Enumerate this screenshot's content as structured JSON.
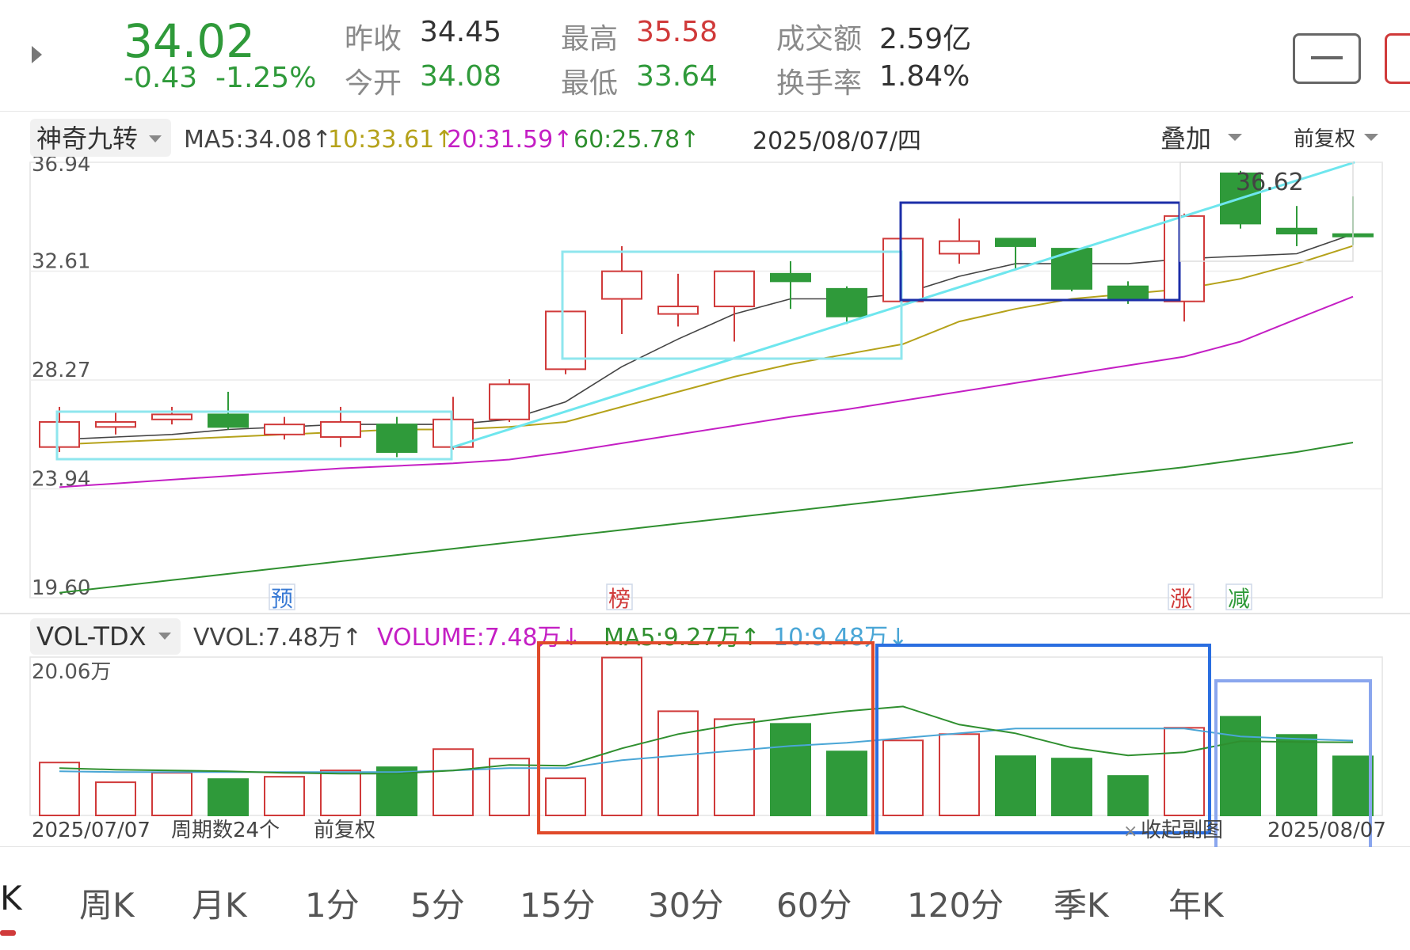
{
  "quote": {
    "price": "34.02",
    "change": "-0.43",
    "change_pct": "-1.25%",
    "fields": [
      {
        "label": "昨收",
        "value": "34.45",
        "color": "dark"
      },
      {
        "label": "今开",
        "value": "34.08",
        "color": "green"
      },
      {
        "label": "最高",
        "value": "35.58",
        "color": "red"
      },
      {
        "label": "最低",
        "value": "33.64",
        "color": "green"
      },
      {
        "label": "成交额",
        "value": "2.59亿",
        "color": "dark"
      },
      {
        "label": "换手率",
        "value": "1.84%",
        "color": "dark"
      }
    ]
  },
  "indicator_bar": {
    "selector": "神奇九转",
    "ma": [
      {
        "text": "MA5:34.08↑",
        "color": "#444444"
      },
      {
        "text": "10:33.61↑",
        "color": "#b5a21a"
      },
      {
        "text": "20:31.59↑",
        "color": "#c41fc4"
      },
      {
        "text": "60:25.78↑",
        "color": "#2f8f2f"
      }
    ],
    "date": "2025/08/07/四",
    "overlay": "叠加",
    "adjust": "前复权"
  },
  "price_axis": [
    "36.94",
    "32.61",
    "28.27",
    "23.94",
    "19.60"
  ],
  "high_label": "36.62",
  "markers": [
    {
      "text": "预",
      "color": "#3a7bd5"
    },
    {
      "text": "榜",
      "color": "#d03a3a"
    },
    {
      "text": "涨",
      "color": "#d03a3a"
    },
    {
      "text": "减",
      "color": "#2f9a3a"
    }
  ],
  "volume_bar": {
    "selector": "VOL-TDX",
    "items": [
      {
        "text": "VVOL:7.48万↑",
        "color": "#444444"
      },
      {
        "text": "VOLUME:7.48万↓",
        "color": "#c41fc4"
      },
      {
        "text": "MA5:9.27万↑",
        "color": "#2f8f2f"
      },
      {
        "text": "10:9.48万↓",
        "color": "#4aa6d6"
      }
    ],
    "axis_top": "20.06万"
  },
  "footer": {
    "start_date": "2025/07/07",
    "period_count": "周期数24个",
    "adjust": "前复权",
    "collapse": "收起副图",
    "end_date": "2025/08/07"
  },
  "tabs": [
    "K",
    "周K",
    "月K",
    "1分",
    "5分",
    "15分",
    "30分",
    "60分",
    "120分",
    "季K",
    "年K"
  ],
  "colors": {
    "up": "#d03a3a",
    "down": "#2f9a3a",
    "ma5": "#444444",
    "ma10": "#b5a21a",
    "ma20": "#c41fc4",
    "ma60": "#2f8f2f",
    "vma10": "#4aa6d6"
  },
  "chart_data": {
    "type": "candlestick",
    "price_range": [
      19.6,
      36.94
    ],
    "volume_range": [
      0,
      20.06
    ],
    "candles": [
      {
        "o": 25.6,
        "c": 26.6,
        "h": 27.2,
        "l": 25.4,
        "v": 6.7
      },
      {
        "o": 26.4,
        "c": 26.6,
        "h": 27.0,
        "l": 26.1,
        "v": 4.2
      },
      {
        "o": 26.7,
        "c": 26.9,
        "h": 27.2,
        "l": 26.5,
        "v": 5.4
      },
      {
        "o": 26.9,
        "c": 26.4,
        "h": 27.8,
        "l": 26.3,
        "v": 4.6
      },
      {
        "o": 26.1,
        "c": 26.5,
        "h": 26.8,
        "l": 25.9,
        "v": 4.9
      },
      {
        "o": 26.0,
        "c": 26.6,
        "h": 27.2,
        "l": 25.6,
        "v": 5.7
      },
      {
        "o": 26.5,
        "c": 25.4,
        "h": 26.8,
        "l": 25.2,
        "v": 6.1
      },
      {
        "o": 25.6,
        "c": 26.7,
        "h": 27.6,
        "l": 25.5,
        "v": 8.4
      },
      {
        "o": 26.7,
        "c": 28.1,
        "h": 28.3,
        "l": 26.6,
        "v": 7.2
      },
      {
        "o": 28.7,
        "c": 31.0,
        "h": 31.0,
        "l": 28.5,
        "v": 4.7
      },
      {
        "o": 31.5,
        "c": 32.6,
        "h": 33.6,
        "l": 30.1,
        "v": 20.0
      },
      {
        "o": 30.9,
        "c": 31.2,
        "h": 32.5,
        "l": 30.4,
        "v": 13.2
      },
      {
        "o": 31.2,
        "c": 32.6,
        "h": 32.6,
        "l": 29.8,
        "v": 12.2
      },
      {
        "o": 32.5,
        "c": 32.2,
        "h": 33.0,
        "l": 31.1,
        "v": 11.6
      },
      {
        "o": 31.9,
        "c": 30.8,
        "h": 32.0,
        "l": 30.5,
        "v": 8.1
      },
      {
        "o": 31.4,
        "c": 33.9,
        "h": 33.9,
        "l": 31.4,
        "v": 9.5
      },
      {
        "o": 33.3,
        "c": 33.8,
        "h": 34.7,
        "l": 32.9,
        "v": 10.3
      },
      {
        "o": 33.9,
        "c": 33.6,
        "h": 33.9,
        "l": 32.7,
        "v": 7.5
      },
      {
        "o": 33.5,
        "c": 31.9,
        "h": 33.5,
        "l": 31.8,
        "v": 7.2
      },
      {
        "o": 32.0,
        "c": 31.5,
        "h": 32.2,
        "l": 31.3,
        "v": 5.0
      },
      {
        "o": 31.4,
        "c": 34.8,
        "h": 34.9,
        "l": 30.6,
        "v": 11.1
      },
      {
        "o": 36.5,
        "c": 34.5,
        "h": 36.6,
        "l": 34.3,
        "v": 12.5
      },
      {
        "o": 34.3,
        "c": 34.1,
        "h": 35.2,
        "l": 33.6,
        "v": 10.2
      },
      {
        "o": 34.08,
        "c": 34.02,
        "h": 35.58,
        "l": 33.64,
        "v": 7.48
      }
    ],
    "ma5": [
      25.9,
      26.0,
      26.1,
      26.3,
      26.4,
      26.5,
      26.5,
      26.5,
      26.7,
      27.4,
      28.8,
      29.9,
      30.9,
      31.5,
      31.5,
      31.7,
      32.4,
      32.9,
      32.9,
      32.9,
      33.1,
      33.2,
      33.3,
      34.08
    ],
    "ma10": [
      25.7,
      25.8,
      25.9,
      26.0,
      26.1,
      26.2,
      26.3,
      26.3,
      26.4,
      26.6,
      27.2,
      27.8,
      28.4,
      28.9,
      29.3,
      29.7,
      30.6,
      31.1,
      31.5,
      31.7,
      31.9,
      32.3,
      32.9,
      33.61
    ],
    "ma20": [
      24.0,
      24.15,
      24.3,
      24.45,
      24.6,
      24.75,
      24.85,
      24.95,
      25.1,
      25.4,
      25.75,
      26.1,
      26.45,
      26.8,
      27.1,
      27.45,
      27.8,
      28.15,
      28.5,
      28.85,
      29.2,
      29.8,
      30.7,
      31.59
    ],
    "ma60": [
      19.8,
      20.05,
      20.3,
      20.55,
      20.8,
      21.05,
      21.3,
      21.55,
      21.8,
      22.05,
      22.3,
      22.55,
      22.8,
      23.05,
      23.3,
      23.55,
      23.8,
      24.05,
      24.3,
      24.55,
      24.8,
      25.1,
      25.4,
      25.78
    ],
    "vol_ma5": [
      6.0,
      5.8,
      5.7,
      5.6,
      5.4,
      5.3,
      5.3,
      5.7,
      6.4,
      6.3,
      8.5,
      10.3,
      11.5,
      12.4,
      13.2,
      13.8,
      11.5,
      10.4,
      8.6,
      7.6,
      8.0,
      9.4,
      9.3,
      9.27
    ],
    "vol_ma10": [
      5.6,
      5.5,
      5.5,
      5.5,
      5.5,
      5.5,
      5.5,
      5.7,
      6.0,
      6.0,
      7.0,
      7.6,
      8.2,
      8.8,
      9.2,
      9.8,
      10.4,
      11.0,
      11.0,
      11.0,
      11.0,
      10.0,
      9.7,
      9.48
    ]
  }
}
